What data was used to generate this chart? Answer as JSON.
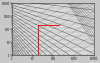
{
  "xmin": 1,
  "xmax": 10000,
  "ymin": 1,
  "ymax": 10000,
  "bg_color": "#c8c8c8",
  "grid_major_color": "#ffffff",
  "grid_minor_color": "#b0b0b0",
  "line_color_dark": "#404040",
  "line_color_mid": "#666666",
  "red_color": "#ee1111",
  "red_vx": 18,
  "red_vy1": 1,
  "red_vy2": 220,
  "red_hx1": 18,
  "red_hx2": 200,
  "red_hy": 220,
  "fan_origin_x_log": -1.5,
  "fan_origin_y_log": 4.5,
  "n_fan_lines": 28,
  "n_fan_lines2": 22,
  "n_fan_lines3": 18
}
